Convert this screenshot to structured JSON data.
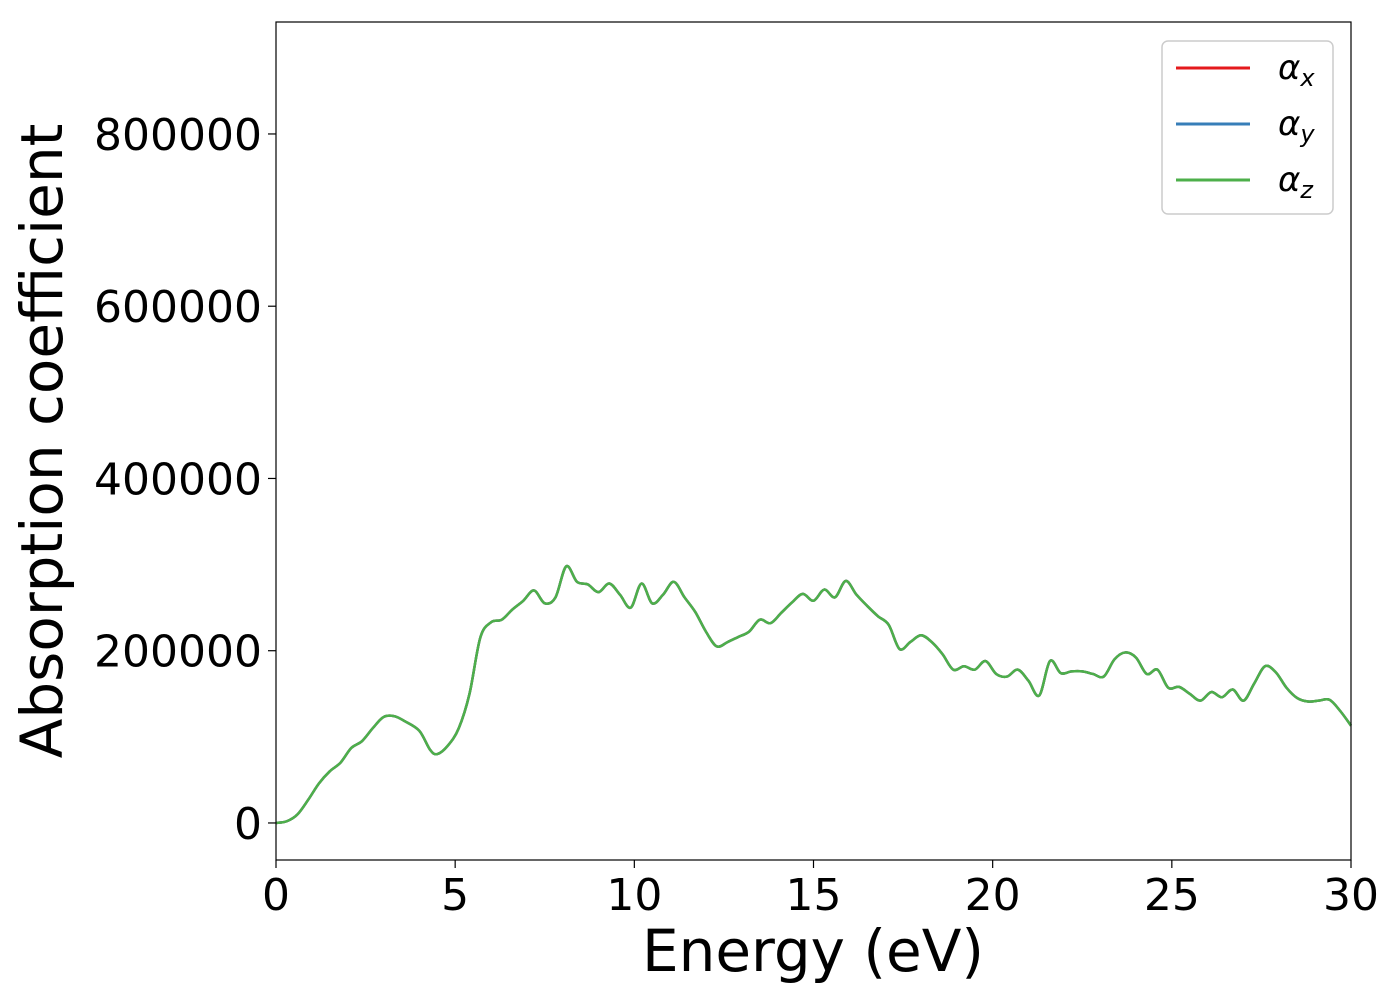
{
  "chart_data": {
    "type": "line",
    "title": "",
    "xlabel": "Energy (eV)",
    "ylabel": "Absorption coefficient",
    "xlim": [
      0,
      30
    ],
    "ylim": [
      -43000,
      930000
    ],
    "xticks": [
      0,
      5,
      10,
      15,
      20,
      25,
      30
    ],
    "xtick_labels": [
      "0",
      "5",
      "10",
      "15",
      "20",
      "25",
      "30"
    ],
    "yticks": [
      0,
      200000,
      400000,
      600000,
      800000
    ],
    "ytick_labels": [
      "0",
      "200000",
      "400000",
      "600000",
      "800000"
    ],
    "grid": false,
    "legend_position": "top-right",
    "x": [
      0,
      0.3,
      0.6,
      0.9,
      1.2,
      1.5,
      1.8,
      2.1,
      2.4,
      2.7,
      3.0,
      3.3,
      3.6,
      4.0,
      4.3,
      4.5,
      4.8,
      5.1,
      5.4,
      5.7,
      6.0,
      6.3,
      6.6,
      6.9,
      7.2,
      7.5,
      7.8,
      8.1,
      8.4,
      8.7,
      9.0,
      9.3,
      9.6,
      9.9,
      10.2,
      10.5,
      10.8,
      11.1,
      11.4,
      11.7,
      12.0,
      12.3,
      12.6,
      12.9,
      13.2,
      13.5,
      13.8,
      14.1,
      14.4,
      14.7,
      15.0,
      15.3,
      15.6,
      15.9,
      16.2,
      16.5,
      16.8,
      17.1,
      17.4,
      17.7,
      18.0,
      18.3,
      18.6,
      18.9,
      19.2,
      19.5,
      19.8,
      20.1,
      20.4,
      20.7,
      21.0,
      21.3,
      21.6,
      21.9,
      22.2,
      22.5,
      22.8,
      23.1,
      23.4,
      23.7,
      24.0,
      24.3,
      24.6,
      24.9,
      25.2,
      25.5,
      25.8,
      26.1,
      26.4,
      26.7,
      27.0,
      27.3,
      27.6,
      27.9,
      28.2,
      28.5,
      28.8,
      29.1,
      29.4,
      29.7,
      30.0
    ],
    "series": [
      {
        "name": "α_x",
        "color": "#e41a1c",
        "values": [
          0,
          2000,
          10000,
          27000,
          46000,
          60000,
          70000,
          87000,
          95000,
          110000,
          123000,
          124000,
          118000,
          107000,
          85000,
          80000,
          90000,
          110000,
          150000,
          215000,
          233000,
          236000,
          248000,
          258000,
          270000,
          255000,
          262000,
          298000,
          280000,
          277000,
          268000,
          278000,
          265000,
          250000,
          278000,
          255000,
          265000,
          280000,
          262000,
          245000,
          222000,
          205000,
          210000,
          216000,
          222000,
          236000,
          232000,
          244000,
          256000,
          266000,
          258000,
          271000,
          262000,
          281000,
          265000,
          252000,
          240000,
          230000,
          202000,
          210000,
          218000,
          210000,
          196000,
          178000,
          182000,
          178000,
          188000,
          173000,
          170000,
          178000,
          165000,
          148000,
          188000,
          174000,
          176000,
          176000,
          173000,
          170000,
          190000,
          198000,
          192000,
          173000,
          178000,
          157000,
          158000,
          150000,
          142000,
          152000,
          146000,
          155000,
          142000,
          162000,
          182000,
          175000,
          157000,
          145000,
          141000,
          142000,
          143000,
          130000,
          113000
        ]
      },
      {
        "name": "α_y",
        "color": "#377eb8",
        "values": [
          0,
          2000,
          10000,
          27000,
          46000,
          60000,
          70000,
          87000,
          95000,
          110000,
          123000,
          124000,
          118000,
          107000,
          85000,
          80000,
          90000,
          110000,
          150000,
          215000,
          233000,
          236000,
          248000,
          258000,
          270000,
          255000,
          262000,
          298000,
          280000,
          277000,
          268000,
          278000,
          265000,
          250000,
          278000,
          255000,
          265000,
          280000,
          262000,
          245000,
          222000,
          205000,
          210000,
          216000,
          222000,
          236000,
          232000,
          244000,
          256000,
          266000,
          258000,
          271000,
          262000,
          281000,
          265000,
          252000,
          240000,
          230000,
          202000,
          210000,
          218000,
          210000,
          196000,
          178000,
          182000,
          178000,
          188000,
          173000,
          170000,
          178000,
          165000,
          148000,
          188000,
          174000,
          176000,
          176000,
          173000,
          170000,
          190000,
          198000,
          192000,
          173000,
          178000,
          157000,
          158000,
          150000,
          142000,
          152000,
          146000,
          155000,
          142000,
          162000,
          182000,
          175000,
          157000,
          145000,
          141000,
          142000,
          143000,
          130000,
          113000
        ]
      },
      {
        "name": "α_z",
        "color": "#4daf4a",
        "values": [
          0,
          2000,
          10000,
          27000,
          46000,
          60000,
          70000,
          87000,
          95000,
          110000,
          123000,
          124000,
          118000,
          107000,
          85000,
          80000,
          90000,
          110000,
          150000,
          215000,
          233000,
          236000,
          248000,
          258000,
          270000,
          255000,
          262000,
          298000,
          280000,
          277000,
          268000,
          278000,
          265000,
          250000,
          278000,
          255000,
          265000,
          280000,
          262000,
          245000,
          222000,
          205000,
          210000,
          216000,
          222000,
          236000,
          232000,
          244000,
          256000,
          266000,
          258000,
          271000,
          262000,
          281000,
          265000,
          252000,
          240000,
          230000,
          202000,
          210000,
          218000,
          210000,
          196000,
          178000,
          182000,
          178000,
          188000,
          173000,
          170000,
          178000,
          165000,
          148000,
          188000,
          174000,
          176000,
          176000,
          173000,
          170000,
          190000,
          198000,
          192000,
          173000,
          178000,
          157000,
          158000,
          150000,
          142000,
          152000,
          146000,
          155000,
          142000,
          162000,
          182000,
          175000,
          157000,
          145000,
          141000,
          142000,
          143000,
          130000,
          113000
        ]
      }
    ],
    "legend": [
      {
        "base": "α",
        "sub": "x",
        "color": "#e41a1c"
      },
      {
        "base": "α",
        "sub": "y",
        "color": "#377eb8"
      },
      {
        "base": "α",
        "sub": "z",
        "color": "#4daf4a"
      }
    ]
  }
}
